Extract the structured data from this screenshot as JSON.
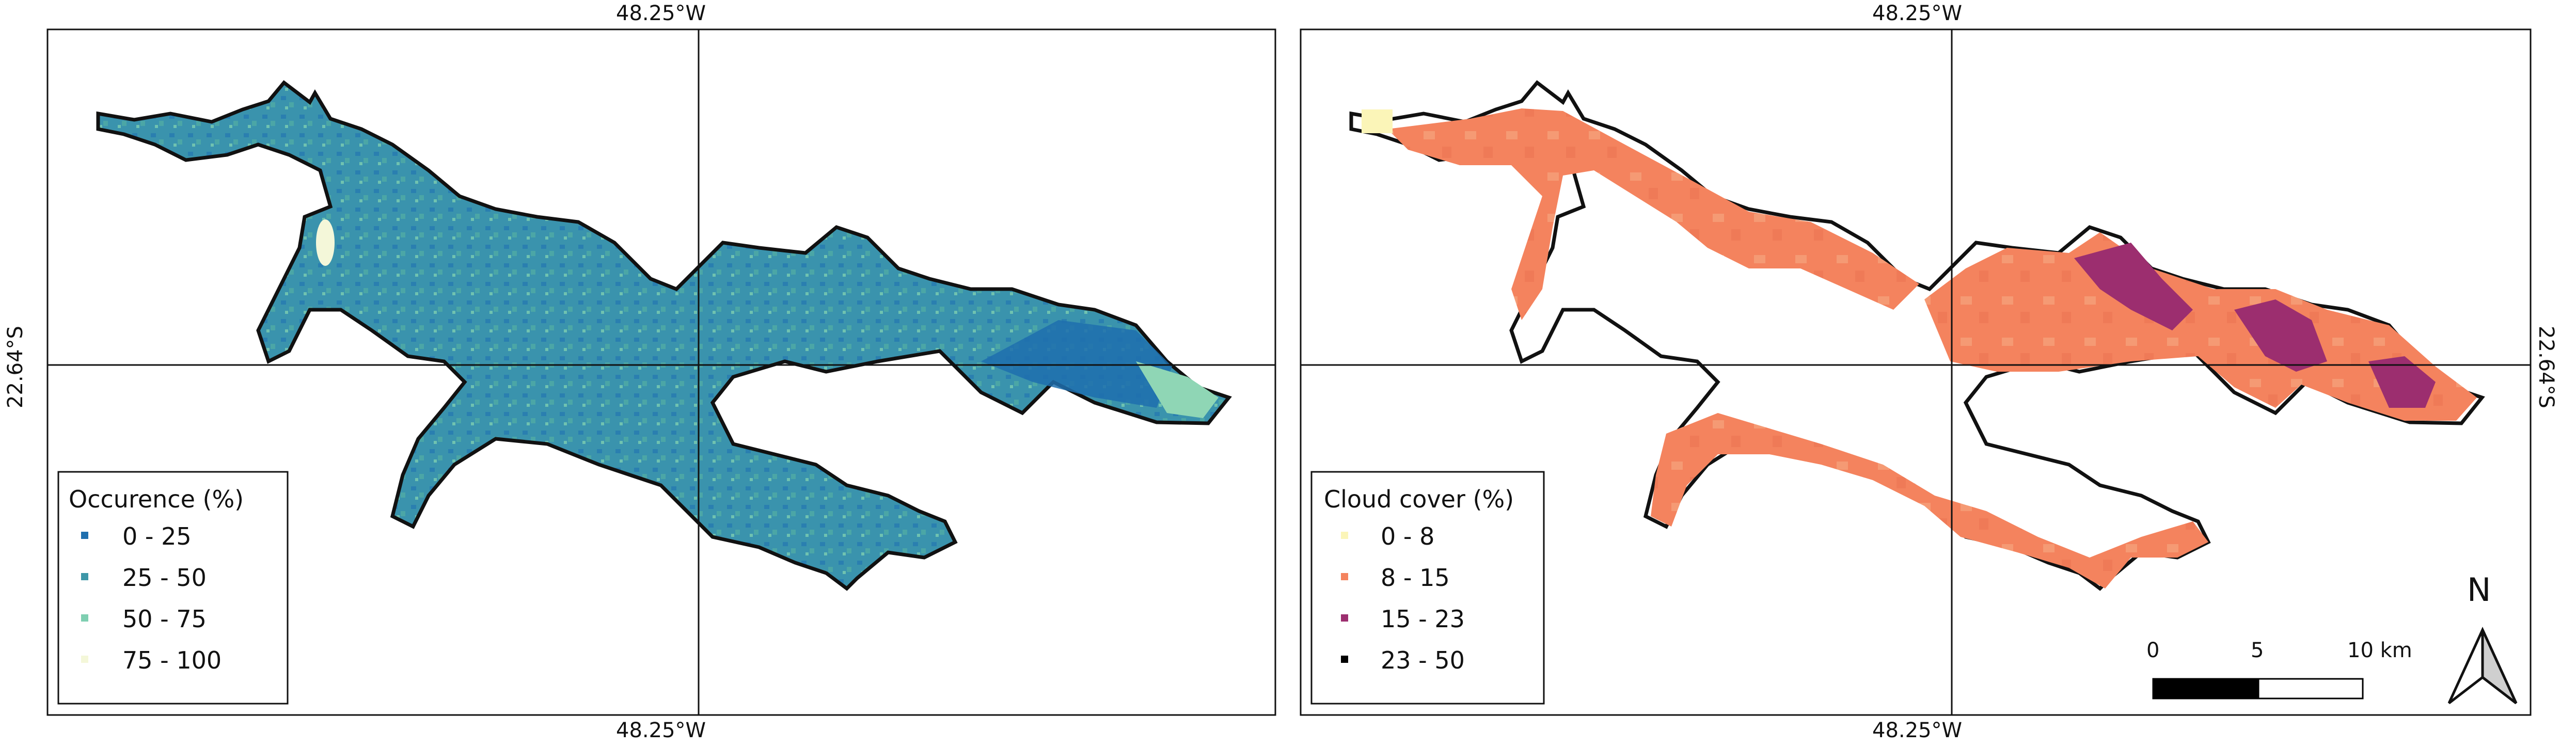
{
  "maps": [
    {
      "id": "occurrence",
      "top_lon_label": "48.25°W",
      "bottom_lon_label": "48.25°W",
      "lat_label": "22.64°S",
      "legend": {
        "title": "Occurence (%)",
        "items": [
          {
            "label": "0 - 25",
            "color": "#1f6fae"
          },
          {
            "label": "25 - 50",
            "color": "#3e97a8"
          },
          {
            "label": "50 - 75",
            "color": "#7fcfb1"
          },
          {
            "label": "75 - 100",
            "color": "#f4f7d9"
          }
        ]
      }
    },
    {
      "id": "cloud-cover",
      "top_lon_label": "48.25°W",
      "bottom_lon_label": "48.25°W",
      "lat_label": "22.64°S",
      "legend": {
        "title": "Cloud cover (%)",
        "items": [
          {
            "label": "0 - 8",
            "color": "#fbf5b8"
          },
          {
            "label": "8 - 15",
            "color": "#f4835e"
          },
          {
            "label": "15 - 23",
            "color": "#9c2e6f"
          },
          {
            "label": "23 - 50",
            "color": "#000000"
          }
        ]
      },
      "scale_bar": {
        "labels": [
          "0",
          "5",
          "10 km"
        ]
      },
      "north_arrow": {
        "label": "N"
      }
    }
  ]
}
